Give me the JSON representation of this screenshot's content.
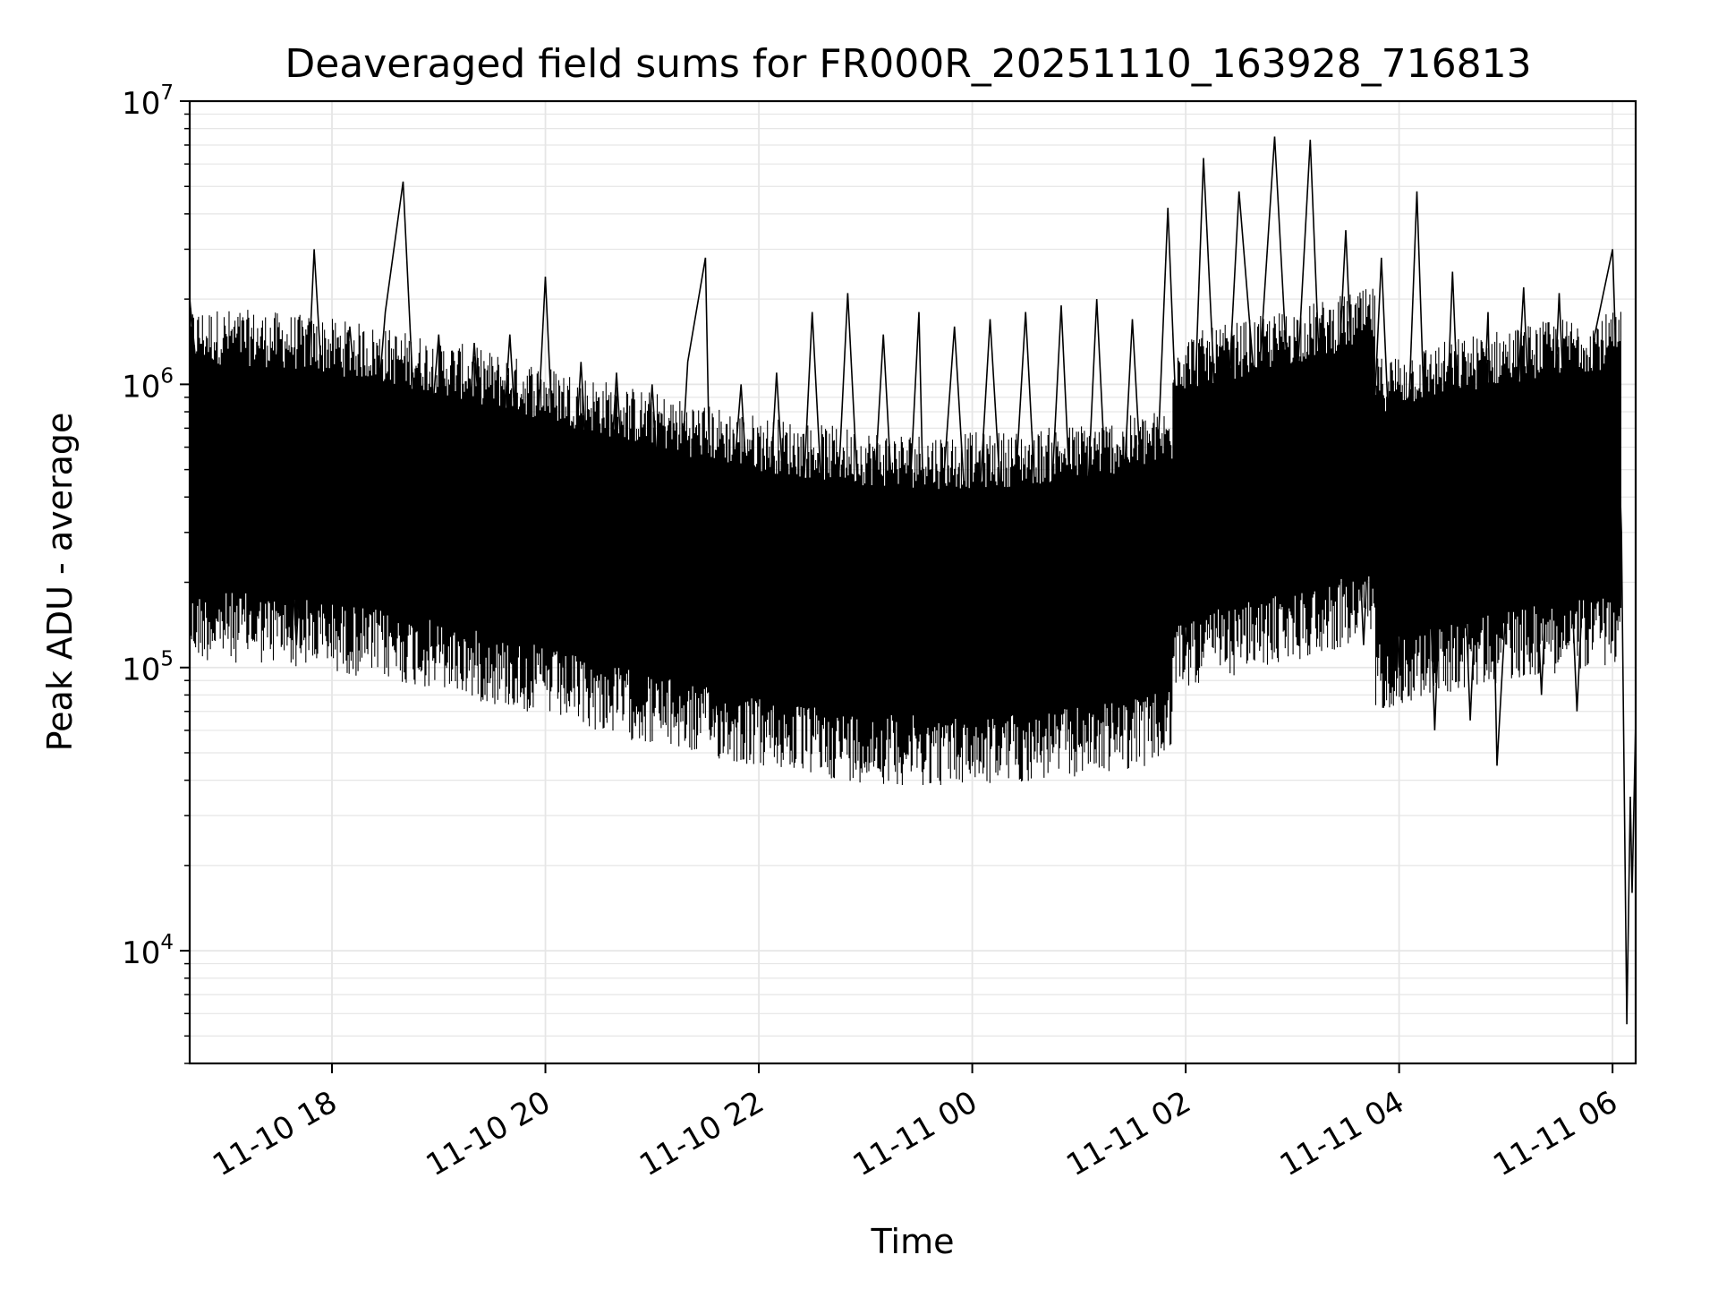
{
  "chart_data": {
    "type": "line",
    "title": "Deaveraged field sums for FR000R_20251110_163928_716813",
    "xlabel": "Time",
    "ylabel": "Peak ADU - average",
    "yscale": "log",
    "ylim": [
      4000,
      10000000
    ],
    "xlim": [
      "2025-11-10 16:40",
      "2025-11-11 06:13"
    ],
    "grid": true,
    "line_color": "#000000",
    "grid_color": "#e6e6e6",
    "x_ticks": [
      {
        "value": "2025-11-10 18:00",
        "label": "11-10 18"
      },
      {
        "value": "2025-11-10 20:00",
        "label": "11-10 20"
      },
      {
        "value": "2025-11-10 22:00",
        "label": "11-10 22"
      },
      {
        "value": "2025-11-11 00:00",
        "label": "11-11 00"
      },
      {
        "value": "2025-11-11 02:00",
        "label": "11-11 02"
      },
      {
        "value": "2025-11-11 04:00",
        "label": "11-11 04"
      },
      {
        "value": "2025-11-11 06:00",
        "label": "11-11 06"
      }
    ],
    "y_ticks": [
      {
        "value": 10000,
        "base": "10",
        "exp": "4"
      },
      {
        "value": 100000,
        "base": "10",
        "exp": "5"
      },
      {
        "value": 1000000,
        "base": "10",
        "exp": "6"
      },
      {
        "value": 10000000,
        "base": "10",
        "exp": "7"
      }
    ],
    "series": [
      {
        "points": [
          [
            "2025-11-10 16:40",
            2000000
          ],
          [
            "2025-11-10 16:50",
            450000
          ],
          [
            "2025-11-10 17:00",
            250000
          ],
          [
            "2025-11-10 17:10",
            1200000
          ],
          [
            "2025-11-10 17:20",
            180000
          ],
          [
            "2025-11-10 17:30",
            1500000
          ],
          [
            "2025-11-10 17:40",
            120000
          ],
          [
            "2025-11-10 17:50",
            3000000
          ],
          [
            "2025-11-10 18:00",
            250000
          ],
          [
            "2025-11-10 18:10",
            1600000
          ],
          [
            "2025-11-10 18:20",
            300000
          ],
          [
            "2025-11-10 18:30",
            1800000
          ],
          [
            "2025-11-10 18:40",
            5200000
          ],
          [
            "2025-11-10 18:50",
            250000
          ],
          [
            "2025-11-10 19:00",
            1500000
          ],
          [
            "2025-11-10 19:10",
            140000
          ],
          [
            "2025-11-10 19:20",
            1400000
          ],
          [
            "2025-11-10 19:30",
            170000
          ],
          [
            "2025-11-10 19:40",
            1500000
          ],
          [
            "2025-11-10 19:50",
            130000
          ],
          [
            "2025-11-10 20:00",
            2400000
          ],
          [
            "2025-11-10 20:10",
            100000
          ],
          [
            "2025-11-10 20:20",
            1200000
          ],
          [
            "2025-11-10 20:30",
            90000
          ],
          [
            "2025-11-10 20:40",
            1100000
          ],
          [
            "2025-11-10 20:50",
            100000
          ],
          [
            "2025-11-10 21:00",
            1000000
          ],
          [
            "2025-11-10 21:10",
            95000
          ],
          [
            "2025-11-10 21:20",
            1200000
          ],
          [
            "2025-11-10 21:30",
            2800000
          ],
          [
            "2025-11-10 21:35",
            65000
          ],
          [
            "2025-11-10 21:50",
            1000000
          ],
          [
            "2025-11-10 22:00",
            85000
          ],
          [
            "2025-11-10 22:10",
            1100000
          ],
          [
            "2025-11-10 22:20",
            90000
          ],
          [
            "2025-11-10 22:30",
            1800000
          ],
          [
            "2025-11-10 22:40",
            110000
          ],
          [
            "2025-11-10 22:50",
            2100000
          ],
          [
            "2025-11-10 23:00",
            120000
          ],
          [
            "2025-11-10 23:10",
            1500000
          ],
          [
            "2025-11-10 23:20",
            100000
          ],
          [
            "2025-11-10 23:30",
            1800000
          ],
          [
            "2025-11-10 23:35",
            75000
          ],
          [
            "2025-11-10 23:50",
            1600000
          ],
          [
            "2025-11-11 00:00",
            140000
          ],
          [
            "2025-11-11 00:10",
            1700000
          ],
          [
            "2025-11-11 00:20",
            150000
          ],
          [
            "2025-11-11 00:30",
            1800000
          ],
          [
            "2025-11-11 00:40",
            110000
          ],
          [
            "2025-11-11 00:50",
            1900000
          ],
          [
            "2025-11-11 01:00",
            85000
          ],
          [
            "2025-11-11 01:10",
            2000000
          ],
          [
            "2025-11-11 01:20",
            100000
          ],
          [
            "2025-11-11 01:30",
            1700000
          ],
          [
            "2025-11-11 01:40",
            120000
          ],
          [
            "2025-11-11 01:50",
            4200000
          ],
          [
            "2025-11-11 02:00",
            110000
          ],
          [
            "2025-11-11 02:10",
            6300000
          ],
          [
            "2025-11-11 02:20",
            300000
          ],
          [
            "2025-11-11 02:30",
            4800000
          ],
          [
            "2025-11-11 02:40",
            800000
          ],
          [
            "2025-11-11 02:50",
            7500000
          ],
          [
            "2025-11-11 03:00",
            500000
          ],
          [
            "2025-11-11 03:10",
            7300000
          ],
          [
            "2025-11-11 03:20",
            200000
          ],
          [
            "2025-11-11 03:30",
            3500000
          ],
          [
            "2025-11-11 03:40",
            120000
          ],
          [
            "2025-11-11 03:50",
            2800000
          ],
          [
            "2025-11-11 04:00",
            100000
          ],
          [
            "2025-11-11 04:10",
            4800000
          ],
          [
            "2025-11-11 04:20",
            60000
          ],
          [
            "2025-11-11 04:30",
            2500000
          ],
          [
            "2025-11-11 04:40",
            65000
          ],
          [
            "2025-11-11 04:50",
            1800000
          ],
          [
            "2025-11-11 04:55",
            45000
          ],
          [
            "2025-11-11 05:10",
            2200000
          ],
          [
            "2025-11-11 05:20",
            80000
          ],
          [
            "2025-11-11 05:30",
            2100000
          ],
          [
            "2025-11-11 05:40",
            70000
          ],
          [
            "2025-11-11 05:50",
            1500000
          ],
          [
            "2025-11-11 06:00",
            3000000
          ],
          [
            "2025-11-11 06:05",
            300000
          ],
          [
            "2025-11-11 06:08",
            5500
          ],
          [
            "2025-11-11 06:10",
            35000
          ],
          [
            "2025-11-11 06:11",
            16000
          ],
          [
            "2025-11-11 06:13",
            65000
          ]
        ]
      }
    ]
  }
}
